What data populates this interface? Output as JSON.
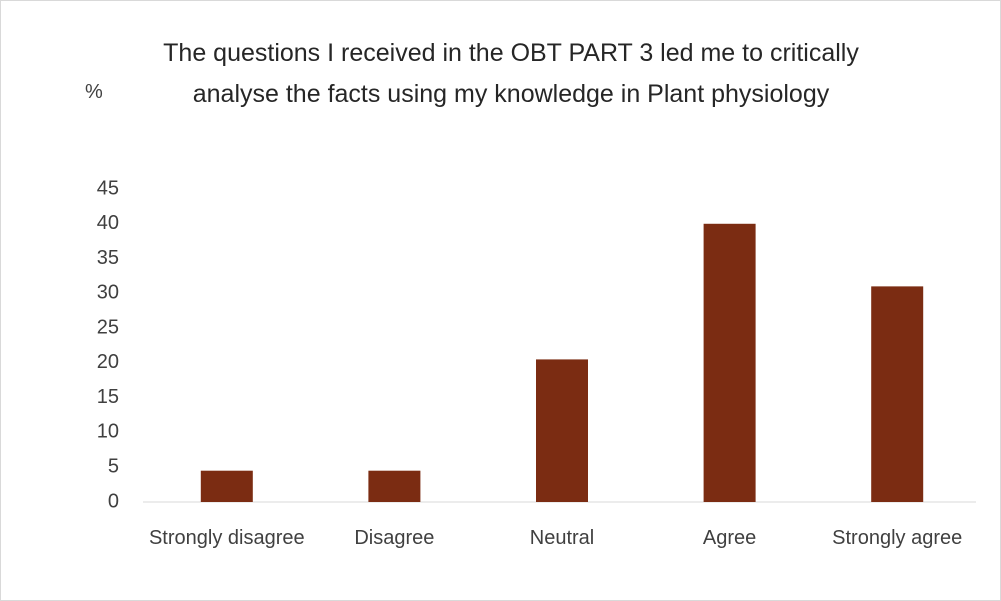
{
  "chart_data": {
    "type": "bar",
    "title": "The questions I received in the OBT PART 3 led me to critically analyse the facts using my knowledge in Plant physiology",
    "y_label": "%",
    "categories": [
      "Strongly disagree",
      "Disagree",
      "Neutral",
      "Agree",
      "Strongly agree"
    ],
    "values": [
      4.5,
      4.5,
      20.5,
      40,
      31
    ],
    "color": "#7b2c12",
    "ylim": [
      0,
      45
    ],
    "yticks": [
      0,
      5,
      10,
      15,
      20,
      25,
      30,
      35,
      40,
      45
    ],
    "grid": false
  }
}
